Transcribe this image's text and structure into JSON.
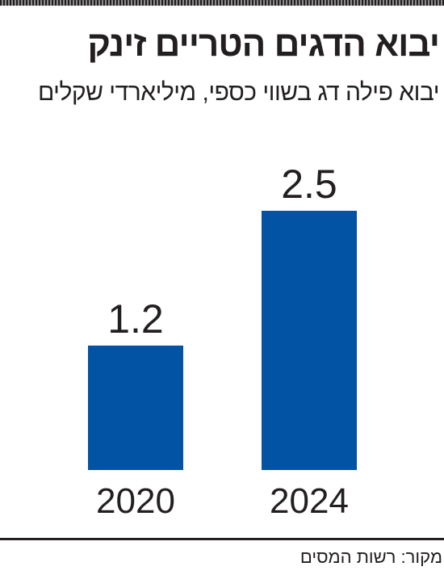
{
  "chart_data": {
    "type": "bar",
    "title": "יבוא הדגים הטריים זינק",
    "subtitle": "יבוא פילה דג בשווי כספי, מיליארדי שקלים",
    "categories": [
      "2020",
      "2024"
    ],
    "values": [
      1.2,
      2.5
    ],
    "color": "#0353a4",
    "source": "מקור: רשות המסים"
  }
}
